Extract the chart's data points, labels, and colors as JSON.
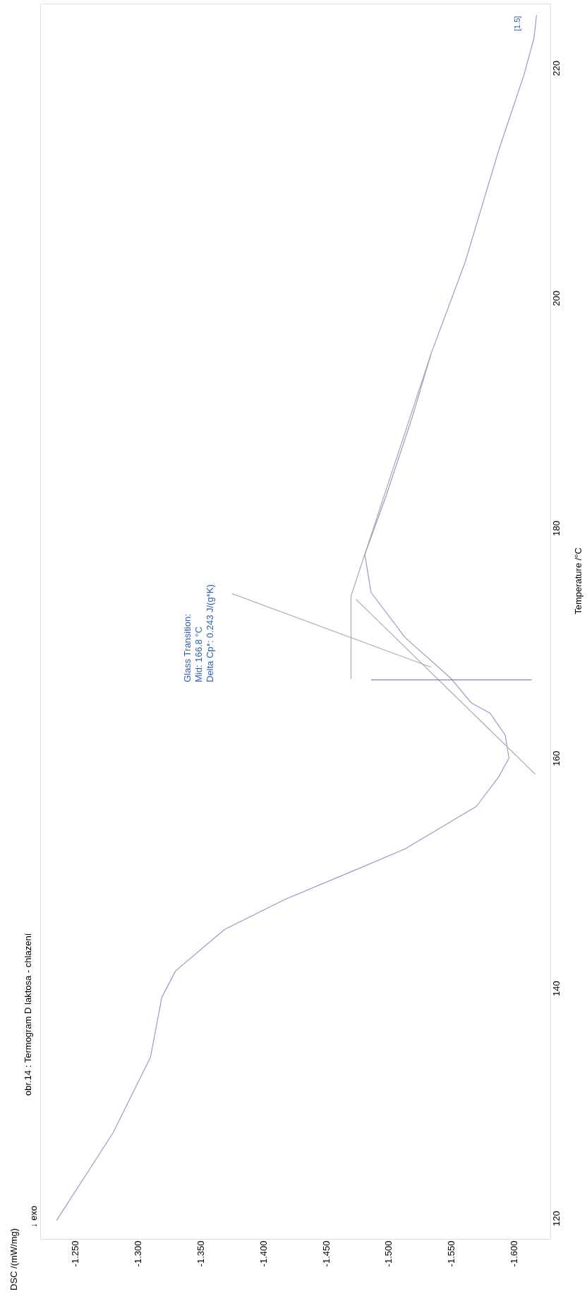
{
  "chart_data": {
    "type": "line",
    "title": "obr.14 : Termogram D laktosa - chlazení",
    "ylabel": "Temperature /°C",
    "xlim": [
      -1.222,
      -1.629
    ],
    "xticks": [
      {
        "value": -1.25,
        "label": "-1.250"
      },
      {
        "value": -1.3,
        "label": "-1.300"
      },
      {
        "value": -1.35,
        "label": "-1.350"
      },
      {
        "value": -1.4,
        "label": "-1.400"
      },
      {
        "value": -1.45,
        "label": "-1.450"
      },
      {
        "value": -1.5,
        "label": "-1.500"
      },
      {
        "value": -1.55,
        "label": "-1.550"
      },
      {
        "value": -1.6,
        "label": "-1.600"
      }
    ],
    "ylim": [
      118.2,
      225.6
    ],
    "yticks": [
      120,
      140,
      160,
      180,
      200,
      220
    ],
    "grid": false,
    "series": [
      {
        "color": "#9999cc",
        "x": [
          -1.235,
          -1.28,
          -1.31,
          -1.319,
          -1.33,
          -1.369,
          -1.417,
          -1.474,
          -1.513,
          -1.57,
          -1.588,
          -1.596,
          -1.593,
          -1.581,
          -1.566,
          -1.55,
          -1.513,
          -1.486,
          -1.481,
          -1.498,
          -1.519,
          -1.534,
          -1.561,
          -1.588,
          -1.608,
          -1.616,
          -1.618
        ],
        "values": [
          119.8,
          127.4,
          134.0,
          139.2,
          141.5,
          145.1,
          147.7,
          150.3,
          152.1,
          155.8,
          158.4,
          160.0,
          162.0,
          163.9,
          164.8,
          166.9,
          170.5,
          174.4,
          177.7,
          182.8,
          189.7,
          195.2,
          203.1,
          212.9,
          219.4,
          222.6,
          224.6
        ]
      },
      {
        "color": "#a8a8a8",
        "x": [
          -1.47,
          -1.47,
          -1.534
        ],
        "values": [
          166.9,
          174.1,
          195.2
        ]
      },
      {
        "color": "#a8a8a8",
        "x": [
          -1.617,
          -1.474
        ],
        "values": [
          158.6,
          173.8
        ]
      },
      {
        "color": "#8080c0",
        "x": [
          -1.486,
          -1.614
        ],
        "values": [
          166.8,
          166.8
        ]
      },
      {
        "color": "#b0b0b0",
        "x": [
          -1.375,
          -1.534
        ],
        "values": [
          174.3,
          167.9
        ]
      }
    ],
    "annotations": [
      "Glass Transition:\nMid: 166.8 °C\nDelta Cp*: 0.243 J/(g*K)",
      {
        "text": "[1.5]",
        "x": -1.618,
        "y": 224.6
      },
      "↓ exo",
      "DSC /(mW/mg)"
    ]
  }
}
